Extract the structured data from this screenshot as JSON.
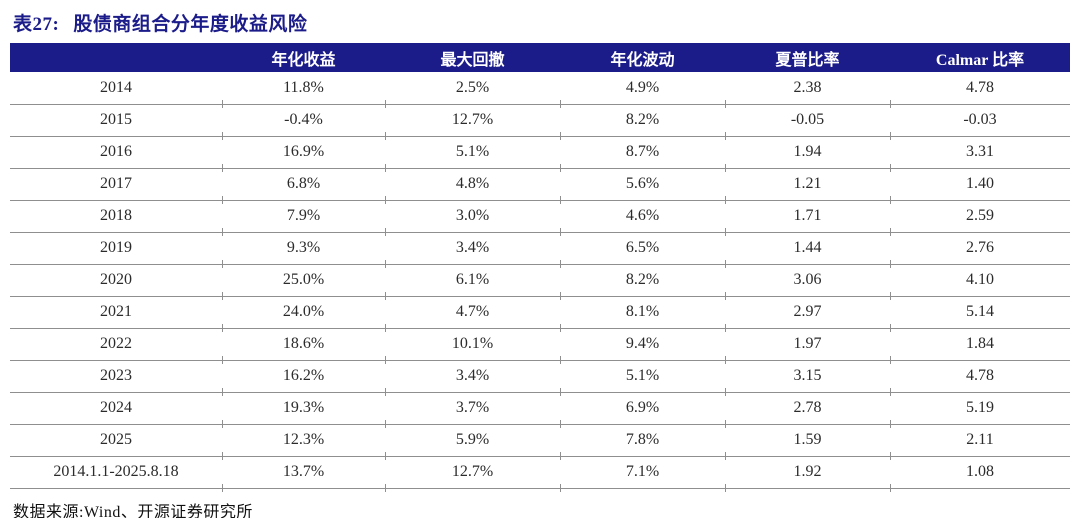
{
  "title": {
    "prefix": "表27:",
    "text": "股债商组合分年度收益风险"
  },
  "source": "数据来源:Wind、开源证券研究所",
  "colors": {
    "header_bg": "#1b1b8a",
    "header_text": "#ffffff",
    "title_text": "#1b1b8a",
    "row_line": "#8f8f8f"
  },
  "table": {
    "columns": [
      "",
      "年化收益",
      "最大回撤",
      "年化波动",
      "夏普比率",
      "Calmar 比率"
    ],
    "rows": [
      {
        "label": "2014",
        "values": [
          "11.8%",
          "2.5%",
          "4.9%",
          "2.38",
          "4.78"
        ]
      },
      {
        "label": "2015",
        "values": [
          "-0.4%",
          "12.7%",
          "8.2%",
          "-0.05",
          "-0.03"
        ]
      },
      {
        "label": "2016",
        "values": [
          "16.9%",
          "5.1%",
          "8.7%",
          "1.94",
          "3.31"
        ]
      },
      {
        "label": "2017",
        "values": [
          "6.8%",
          "4.8%",
          "5.6%",
          "1.21",
          "1.40"
        ]
      },
      {
        "label": "2018",
        "values": [
          "7.9%",
          "3.0%",
          "4.6%",
          "1.71",
          "2.59"
        ]
      },
      {
        "label": "2019",
        "values": [
          "9.3%",
          "3.4%",
          "6.5%",
          "1.44",
          "2.76"
        ]
      },
      {
        "label": "2020",
        "values": [
          "25.0%",
          "6.1%",
          "8.2%",
          "3.06",
          "4.10"
        ]
      },
      {
        "label": "2021",
        "values": [
          "24.0%",
          "4.7%",
          "8.1%",
          "2.97",
          "5.14"
        ]
      },
      {
        "label": "2022",
        "values": [
          "18.6%",
          "10.1%",
          "9.4%",
          "1.97",
          "1.84"
        ]
      },
      {
        "label": "2023",
        "values": [
          "16.2%",
          "3.4%",
          "5.1%",
          "3.15",
          "4.78"
        ]
      },
      {
        "label": "2024",
        "values": [
          "19.3%",
          "3.7%",
          "6.9%",
          "2.78",
          "5.19"
        ]
      },
      {
        "label": "2025",
        "values": [
          "12.3%",
          "5.9%",
          "7.8%",
          "1.59",
          "2.11"
        ]
      },
      {
        "label": "2014.1.1-2025.8.18",
        "values": [
          "13.7%",
          "12.7%",
          "7.1%",
          "1.92",
          "1.08"
        ]
      }
    ]
  }
}
